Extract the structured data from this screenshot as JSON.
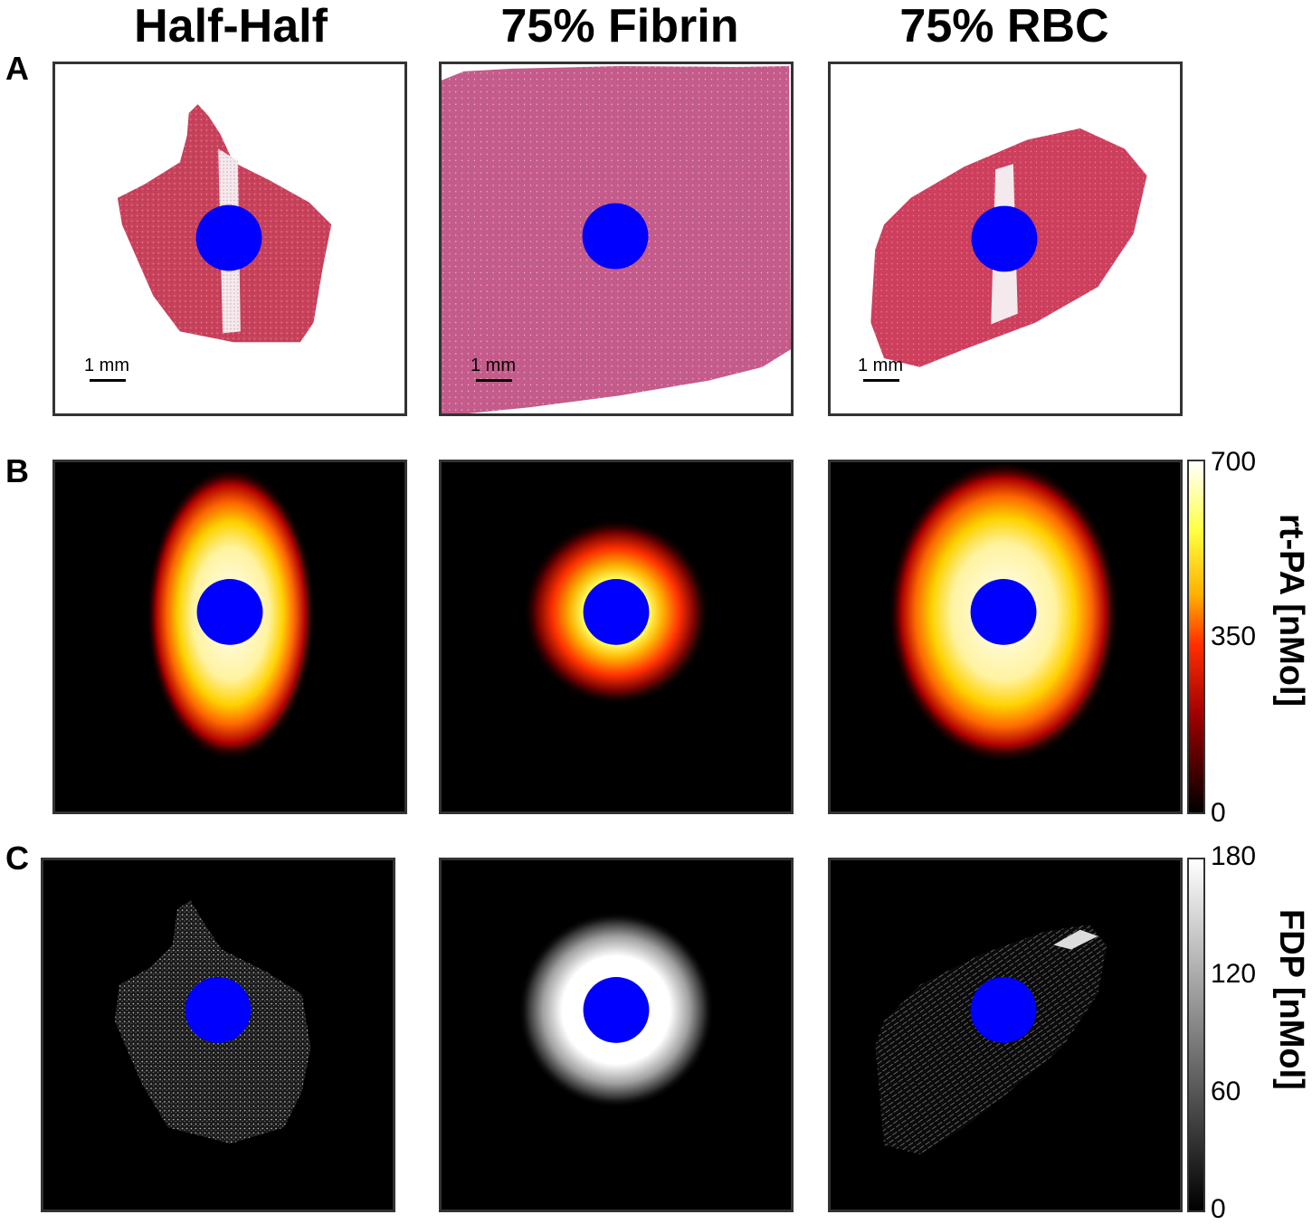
{
  "columns": [
    "Half-Half",
    "75% Fibrin",
    "75% RBC"
  ],
  "rows": {
    "a": {
      "label": "A"
    },
    "b": {
      "label": "B"
    },
    "c": {
      "label": "C"
    }
  },
  "scalebar": "1 mm",
  "colorbars": {
    "rtpa": {
      "label": "rt-PA [nMol]",
      "ticks": [
        "700",
        "350",
        "0"
      ],
      "range": [
        0,
        700
      ]
    },
    "fdp": {
      "label": "FDP [nMol]",
      "ticks": [
        "180",
        "120",
        "60",
        "0"
      ],
      "range": [
        0,
        180
      ]
    }
  },
  "colors": {
    "marker": "#0000ff",
    "clot_red": "#c8415a",
    "fibrin_pink": "#c45b8a",
    "heat_low": "#000000",
    "heat_high": "#ffffff"
  }
}
